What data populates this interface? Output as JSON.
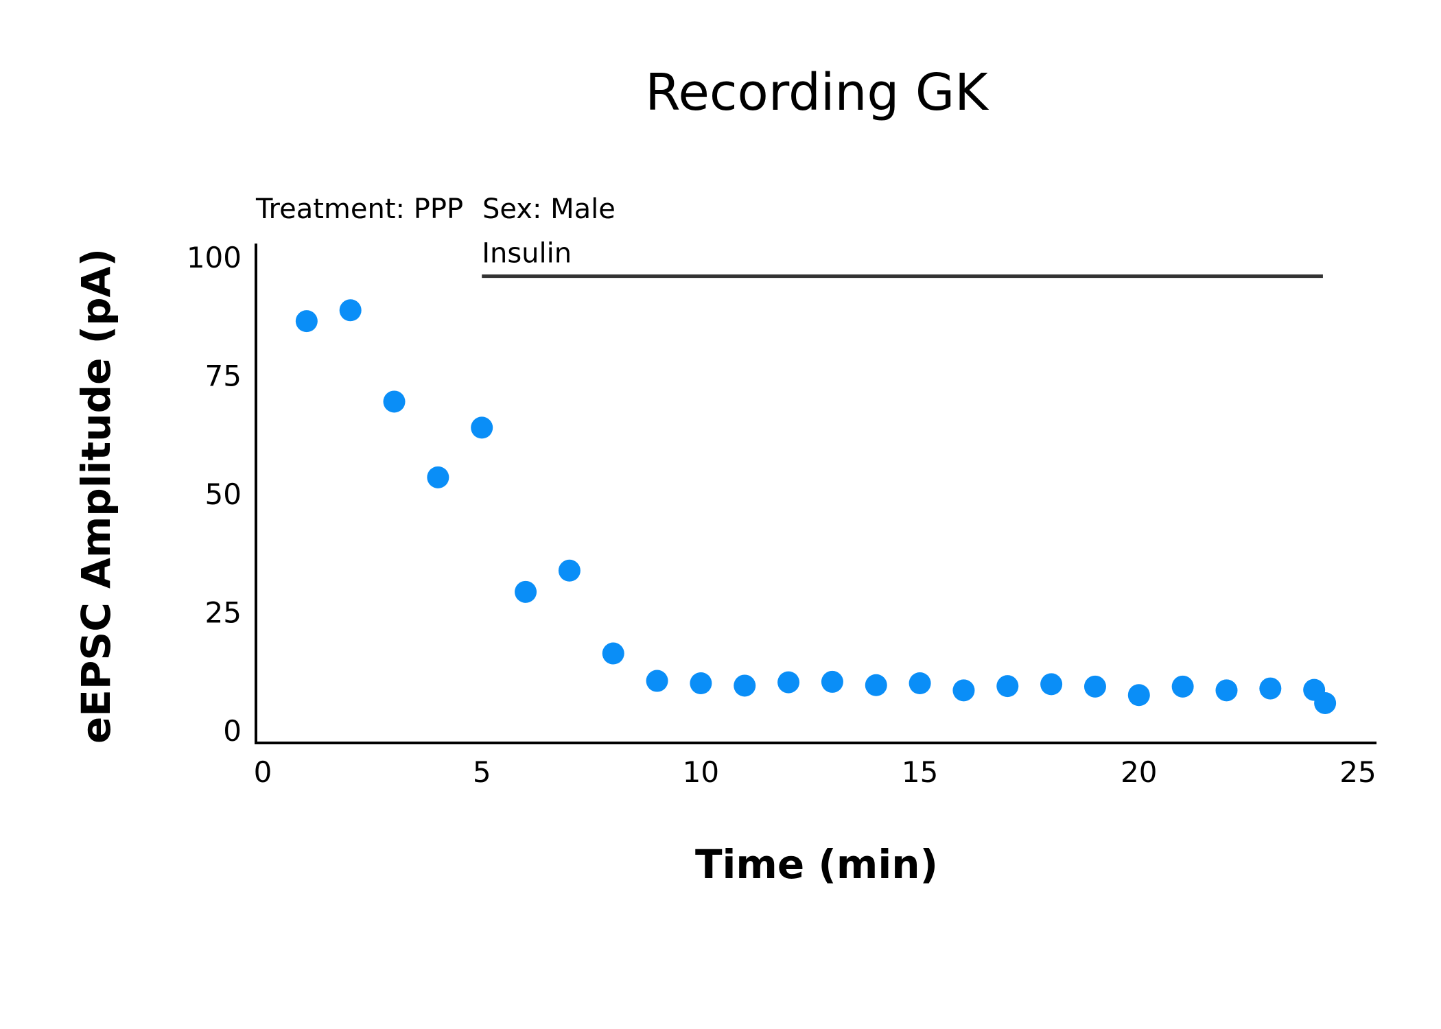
{
  "chart_data": {
    "type": "scatter",
    "title": "Recording GK",
    "xlabel": "Time (min)",
    "ylabel": "eEPSC Amplitude (pA)",
    "xlim": [
      0,
      25
    ],
    "ylim": [
      0,
      100
    ],
    "xticks": [
      0,
      5,
      10,
      15,
      20,
      25
    ],
    "yticks": [
      0,
      25,
      50,
      75,
      100
    ],
    "grid": false,
    "legend": "none",
    "annotations": {
      "treatment": "Treatment: PPP",
      "sex": "Sex: Male",
      "bar_label": "Insulin",
      "bar_start": 5,
      "bar_end": 24.2,
      "bar_y": 96
    },
    "point_color": "#0a8ef7",
    "x": [
      1,
      2,
      3,
      4,
      5,
      6,
      7,
      8,
      9,
      10,
      11,
      12,
      13,
      14,
      15,
      16,
      17,
      18,
      19,
      20,
      21,
      22,
      23,
      24,
      24.25
    ],
    "y": [
      86.5,
      88.8,
      69.5,
      53.5,
      64,
      29.3,
      33.8,
      16.3,
      10.5,
      10,
      9.5,
      10.2,
      10.3,
      9.6,
      10,
      8.5,
      9.4,
      9.8,
      9.3,
      7.5,
      9.3,
      8.5,
      8.9,
      8.6,
      5.8
    ]
  }
}
